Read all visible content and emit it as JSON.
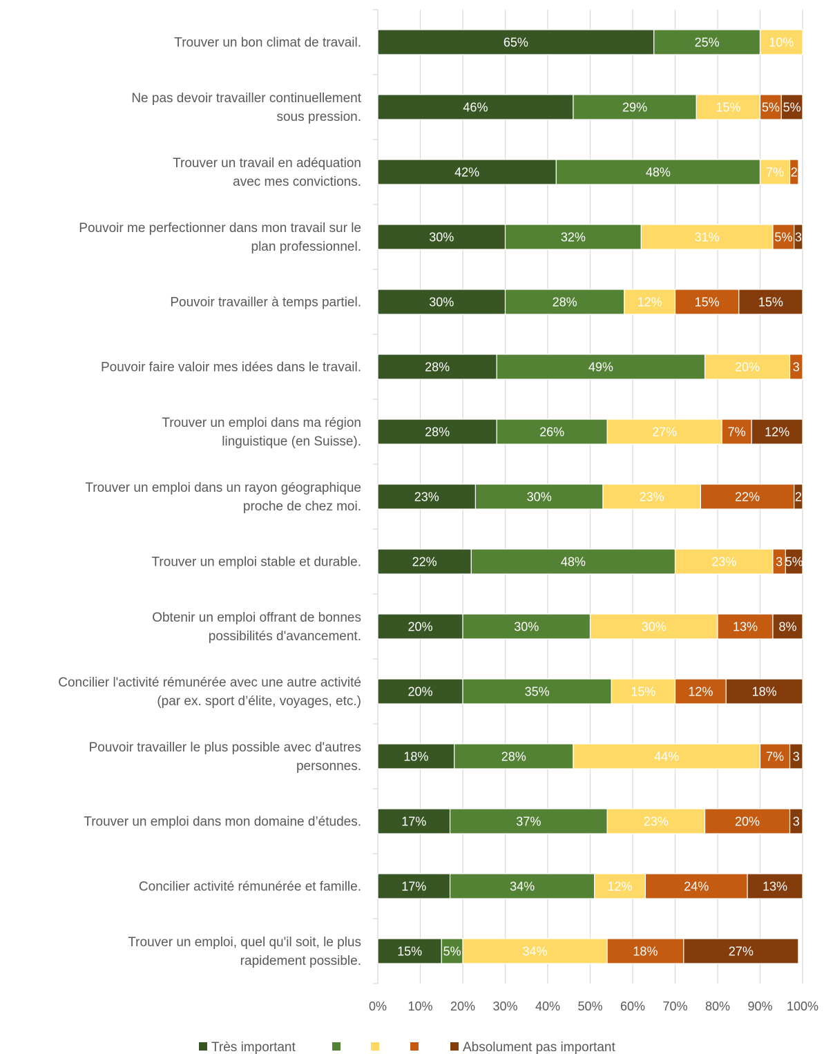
{
  "chart_data": {
    "type": "bar",
    "orientation": "horizontal",
    "stacked": "100%",
    "categories": [
      [
        "Trouver un bon climat de travail."
      ],
      [
        "Ne pas devoir travailler continuellement",
        "sous pression."
      ],
      [
        "Trouver un travail en adéquation",
        "avec mes convictions."
      ],
      [
        "Pouvoir me perfectionner dans mon travail sur le",
        "plan professionnel."
      ],
      [
        "Pouvoir travailler à temps partiel."
      ],
      [
        "Pouvoir faire valoir mes idées dans le travail."
      ],
      [
        "Trouver un emploi dans ma région",
        "linguistique (en Suisse)."
      ],
      [
        "Trouver un emploi dans un rayon géographique",
        "proche de chez moi."
      ],
      [
        "Trouver un emploi stable et durable."
      ],
      [
        "Obtenir un emploi offrant de bonnes",
        "possibilités d'avancement."
      ],
      [
        "Concilier l'activité rémunérée avec une autre activité",
        "(par ex. sport d’élite, voyages, etc.)"
      ],
      [
        "Pouvoir travailler le plus possible avec d'autres",
        "personnes."
      ],
      [
        "Trouver un emploi dans mon domaine d’études."
      ],
      [
        "Concilier activité rémunérée et famille."
      ],
      [
        "Trouver un emploi, quel qu'il soit, le plus",
        "rapidement possible."
      ]
    ],
    "series": [
      {
        "name": "Très important",
        "color": "#375623",
        "label_color": "#ffffff",
        "values": [
          65,
          46,
          42,
          30,
          30,
          28,
          28,
          23,
          22,
          20,
          20,
          18,
          17,
          17,
          15
        ],
        "labels": [
          "65%",
          "46%",
          "42%",
          "30%",
          "30%",
          "28%",
          "28%",
          "23%",
          "22%",
          "20%",
          "20%",
          "18%",
          "17%",
          "17%",
          "15%"
        ]
      },
      {
        "name": "",
        "color": "#548235",
        "label_color": "#ffffff",
        "values": [
          25,
          29,
          48,
          32,
          28,
          49,
          26,
          30,
          48,
          30,
          35,
          28,
          37,
          34,
          5
        ],
        "labels": [
          "25%",
          "29%",
          "48%",
          "32%",
          "28%",
          "49%",
          "26%",
          "30%",
          "48%",
          "30%",
          "35%",
          "28%",
          "37%",
          "34%",
          "5%"
        ]
      },
      {
        "name": "",
        "color": "#FFD966",
        "label_color": "#ffffff",
        "values": [
          10,
          15,
          7,
          31,
          12,
          20,
          27,
          23,
          23,
          30,
          15,
          44,
          23,
          12,
          34
        ],
        "labels": [
          "10%",
          "15%",
          "7%",
          "31%",
          "12%",
          "20%",
          "27%",
          "23%",
          "23%",
          "30%",
          "15%",
          "44%",
          "23%",
          "12%",
          "34%"
        ]
      },
      {
        "name": "",
        "color": "#C55A11",
        "label_color": "#ffffff",
        "values": [
          0,
          5,
          2,
          5,
          15,
          3,
          7,
          22,
          3,
          13,
          12,
          7,
          20,
          24,
          18
        ],
        "labels": [
          "",
          "5%",
          "2",
          "5%",
          "15%",
          "3",
          "7%",
          "22%",
          "3",
          "13%",
          "12%",
          "7%",
          "20%",
          "24%",
          "18%"
        ]
      },
      {
        "name": "Absolument pas important",
        "color": "#843C0C",
        "label_color": "#ffffff",
        "values": [
          0,
          5,
          0,
          3,
          15,
          0,
          12,
          2,
          5,
          8,
          18,
          3,
          3,
          13,
          27
        ],
        "labels": [
          "",
          "5%",
          "",
          "3",
          "15%",
          "",
          "12%",
          "2",
          "5%",
          "8%",
          "18%",
          "3",
          "3",
          "13%",
          "27%"
        ]
      }
    ],
    "xlim": [
      0,
      100
    ],
    "x_ticks": [
      "0%",
      "10%",
      "20%",
      "30%",
      "40%",
      "50%",
      "60%",
      "70%",
      "80%",
      "90%",
      "100%"
    ],
    "grid": true,
    "legend_position": "bottom"
  }
}
